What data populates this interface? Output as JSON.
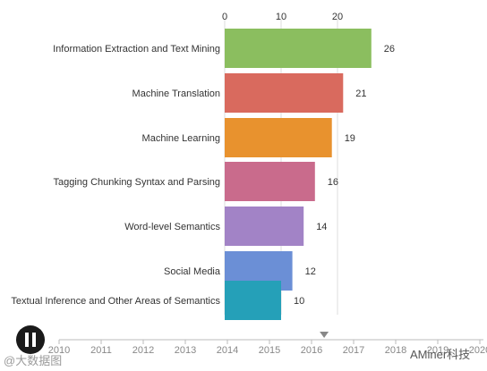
{
  "chart_data": {
    "type": "bar",
    "orientation": "horizontal",
    "categories": [
      "Information Extraction and Text Mining",
      "Machine Translation",
      "Machine Learning",
      "Tagging Chunking Syntax and Parsing",
      "Word-level Semantics",
      "Social Media",
      "Textual Inference and Other Areas of Semantics"
    ],
    "values": [
      26,
      21,
      19,
      16,
      14,
      12,
      10
    ],
    "colors": [
      "#8bbe5f",
      "#d96a5e",
      "#e8922e",
      "#c96b8c",
      "#a283c6",
      "#6b8fd6",
      "#25a0b8"
    ],
    "x_ticks": [
      0,
      10,
      20
    ],
    "xlim": [
      0,
      26
    ],
    "grid": true,
    "title": "",
    "xlabel": "",
    "ylabel": ""
  },
  "timeline": {
    "years": [
      "2010",
      "2011",
      "2012",
      "2013",
      "2014",
      "2015",
      "2016",
      "2017",
      "2018",
      "2019",
      "2020"
    ],
    "current_value": 2016.3,
    "play_icon": "pause-icon"
  },
  "watermarks": {
    "left": "@大数据图",
    "right": "AMiner科技"
  }
}
